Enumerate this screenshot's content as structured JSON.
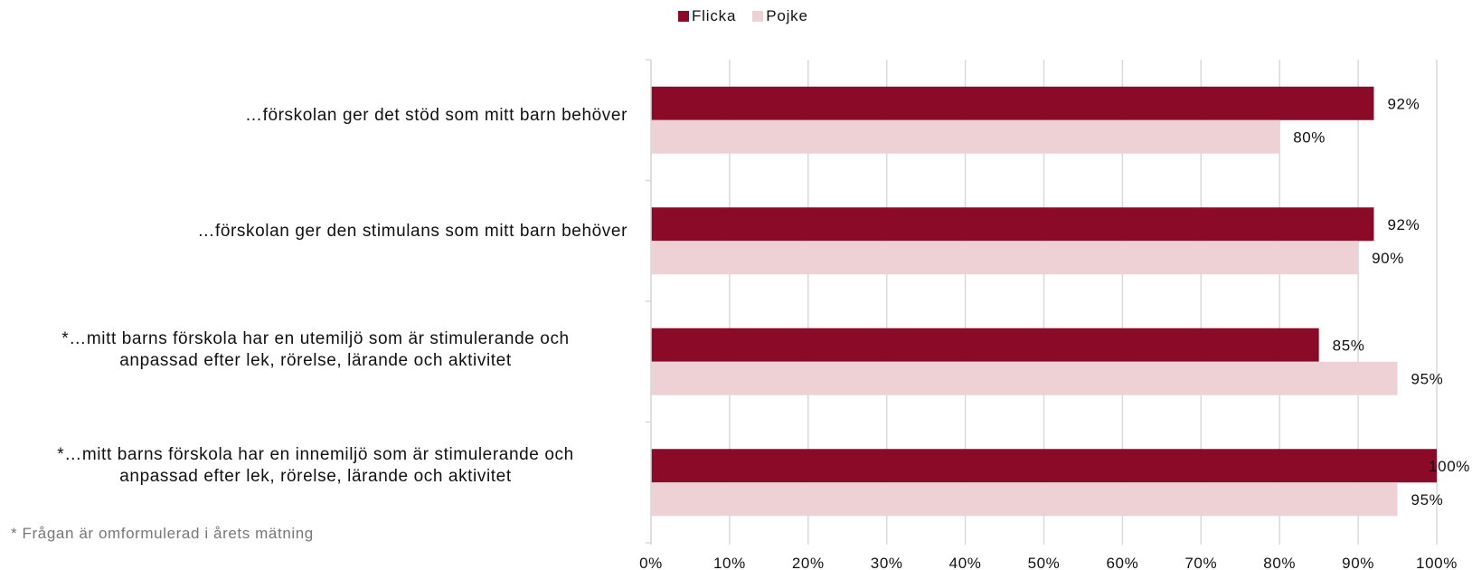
{
  "chart_data": {
    "type": "bar",
    "orientation": "horizontal",
    "categories": [
      "…förskolan ger det stöd som mitt barn behöver",
      "…förskolan ger den stimulans som mitt barn behöver",
      "*…mitt barns förskola har en utemiljö som är stimulerande och\nanpassad efter lek, rörelse, lärande och aktivitet",
      "*…mitt barns förskola har en innemiljö som är stimulerande och\nanpassad efter lek, rörelse, lärande och aktivitet"
    ],
    "series": [
      {
        "name": "Flicka",
        "color": "#8b0a28",
        "values": [
          92,
          92,
          85,
          100
        ],
        "labels": [
          "92%",
          "92%",
          "85%",
          "100%"
        ]
      },
      {
        "name": "Pojke",
        "color": "#edd1d4",
        "values": [
          80,
          90,
          95,
          95
        ],
        "labels": [
          "80%",
          "90%",
          "95%",
          "95%"
        ]
      }
    ],
    "xlim": [
      0,
      100
    ],
    "xticks": [
      "0%",
      "10%",
      "20%",
      "30%",
      "40%",
      "50%",
      "60%",
      "70%",
      "80%",
      "90%",
      "100%"
    ],
    "grid": true,
    "legend_position": "top"
  },
  "footnote": "* Frågan är omformulerad i årets mätning"
}
